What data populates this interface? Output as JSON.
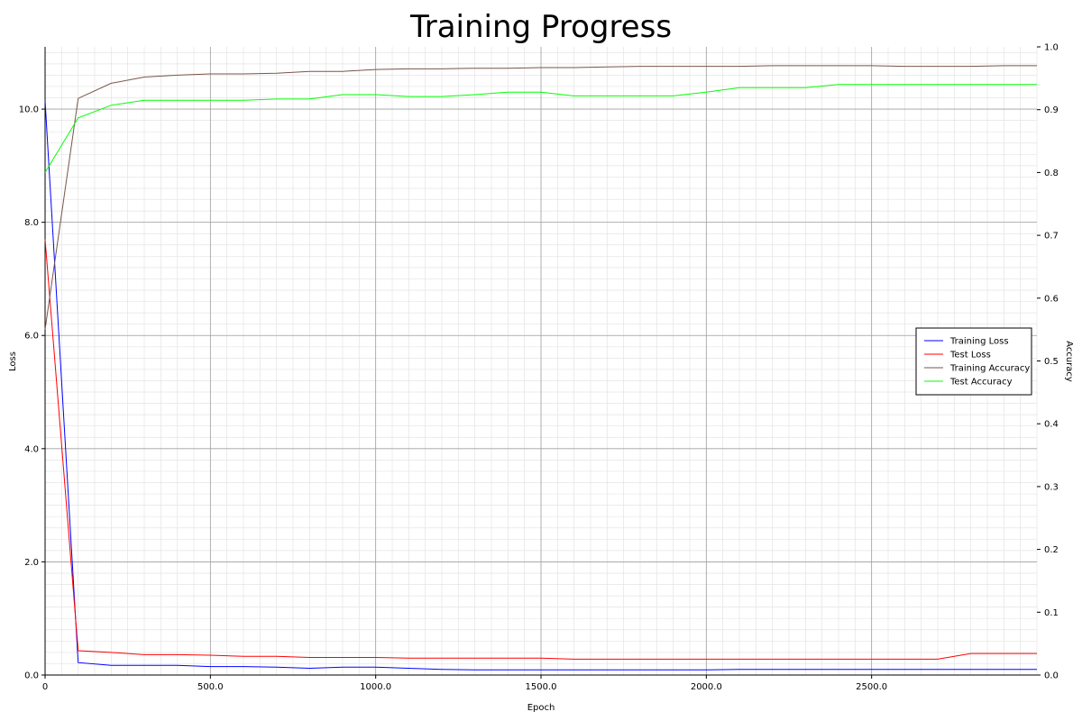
{
  "chart_data": {
    "type": "line",
    "title": "Training Progress",
    "xlabel": "Epoch",
    "ylabel_left": "Loss",
    "ylabel_right": "Accuracy",
    "xlim": [
      0,
      3000
    ],
    "ylim_left": [
      0,
      11.1
    ],
    "ylim_right": [
      0,
      1.0
    ],
    "x_ticks": [
      0,
      500,
      1000,
      1500,
      2000,
      2500
    ],
    "x_tick_labels": [
      "0",
      "500.0",
      "1000.0",
      "1500.0",
      "2000.0",
      "2500.0"
    ],
    "y_left_ticks": [
      0,
      2,
      4,
      6,
      8,
      10
    ],
    "y_left_tick_labels": [
      "0.0",
      "2.0",
      "4.0",
      "6.0",
      "8.0",
      "10.0"
    ],
    "y_right_ticks": [
      0,
      0.1,
      0.2,
      0.3,
      0.4,
      0.5,
      0.6,
      0.7,
      0.8,
      0.9,
      1.0
    ],
    "y_right_tick_labels": [
      "0.0",
      "0.1",
      "0.2",
      "0.3",
      "0.4",
      "0.5",
      "0.6",
      "0.7",
      "0.8",
      "0.9",
      "1.0"
    ],
    "grid": true,
    "legend_position": "right",
    "x": [
      0,
      100,
      200,
      300,
      400,
      500,
      600,
      700,
      800,
      900,
      1000,
      1100,
      1200,
      1300,
      1400,
      1500,
      1600,
      1700,
      1800,
      1900,
      2000,
      2100,
      2200,
      2300,
      2400,
      2500,
      2600,
      2700,
      2800,
      2900,
      3000
    ],
    "series": [
      {
        "name": "Training Loss",
        "axis": "left",
        "color": "#0000ff",
        "values": [
          10.15,
          0.22,
          0.17,
          0.17,
          0.17,
          0.15,
          0.15,
          0.14,
          0.12,
          0.14,
          0.14,
          0.12,
          0.1,
          0.09,
          0.09,
          0.09,
          0.09,
          0.09,
          0.09,
          0.09,
          0.09,
          0.1,
          0.1,
          0.1,
          0.1,
          0.1,
          0.1,
          0.1,
          0.1,
          0.1,
          0.1
        ]
      },
      {
        "name": "Test Loss",
        "axis": "left",
        "color": "#ff0000",
        "values": [
          7.7,
          0.43,
          0.4,
          0.36,
          0.36,
          0.35,
          0.33,
          0.33,
          0.31,
          0.31,
          0.31,
          0.3,
          0.3,
          0.3,
          0.3,
          0.3,
          0.28,
          0.28,
          0.28,
          0.28,
          0.28,
          0.28,
          0.28,
          0.28,
          0.28,
          0.28,
          0.28,
          0.28,
          0.38,
          0.38,
          0.38
        ]
      },
      {
        "name": "Training Accuracy",
        "axis": "right",
        "color": "#795548",
        "values": [
          0.55,
          0.918,
          0.942,
          0.952,
          0.955,
          0.957,
          0.957,
          0.958,
          0.961,
          0.961,
          0.964,
          0.965,
          0.965,
          0.966,
          0.966,
          0.967,
          0.967,
          0.968,
          0.969,
          0.969,
          0.969,
          0.969,
          0.97,
          0.97,
          0.97,
          0.97,
          0.969,
          0.969,
          0.969,
          0.97,
          0.97
        ]
      },
      {
        "name": "Test Accuracy",
        "axis": "right",
        "color": "#00ff00",
        "values": [
          0.8,
          0.887,
          0.907,
          0.915,
          0.915,
          0.915,
          0.915,
          0.917,
          0.917,
          0.924,
          0.924,
          0.921,
          0.921,
          0.924,
          0.928,
          0.928,
          0.922,
          0.922,
          0.922,
          0.922,
          0.928,
          0.935,
          0.935,
          0.935,
          0.94,
          0.94,
          0.94,
          0.94,
          0.94,
          0.94,
          0.94
        ]
      }
    ]
  }
}
